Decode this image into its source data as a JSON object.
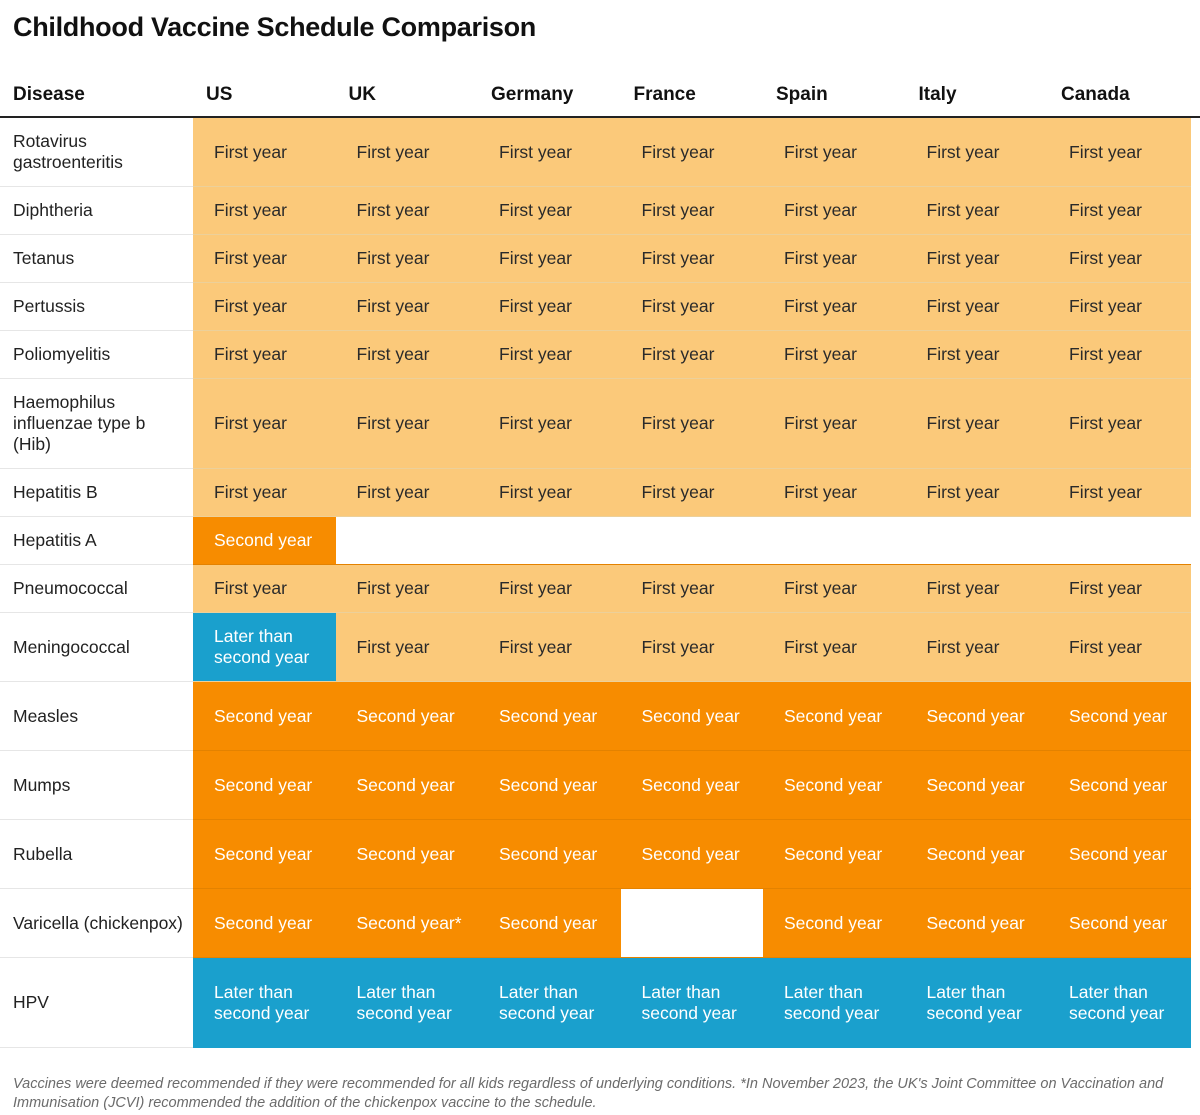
{
  "title": "Childhood Vaccine Schedule Comparison",
  "chart_data": {
    "type": "table",
    "title": "Childhood Vaccine Schedule Comparison",
    "columns": [
      "Disease",
      "US",
      "UK",
      "Germany",
      "France",
      "Spain",
      "Italy",
      "Canada"
    ],
    "rows": [
      {
        "disease": "Rotavirus gastroenteritis",
        "values": [
          "First year",
          "First year",
          "First year",
          "First year",
          "First year",
          "First year",
          "First year"
        ]
      },
      {
        "disease": "Diphtheria",
        "values": [
          "First year",
          "First year",
          "First year",
          "First year",
          "First year",
          "First year",
          "First year"
        ]
      },
      {
        "disease": "Tetanus",
        "values": [
          "First year",
          "First year",
          "First year",
          "First year",
          "First year",
          "First year",
          "First year"
        ]
      },
      {
        "disease": "Pertussis",
        "values": [
          "First year",
          "First year",
          "First year",
          "First year",
          "First year",
          "First year",
          "First year"
        ]
      },
      {
        "disease": "Poliomyelitis",
        "values": [
          "First year",
          "First year",
          "First year",
          "First year",
          "First year",
          "First year",
          "First year"
        ]
      },
      {
        "disease": "Haemophilus influenzae type b (Hib)",
        "values": [
          "First year",
          "First year",
          "First year",
          "First year",
          "First year",
          "First year",
          "First year"
        ]
      },
      {
        "disease": "Hepatitis B",
        "values": [
          "First year",
          "First year",
          "First year",
          "First year",
          "First year",
          "First year",
          "First year"
        ]
      },
      {
        "disease": "Hepatitis A",
        "values": [
          "Second year",
          "",
          "",
          "",
          "",
          "",
          ""
        ]
      },
      {
        "disease": "Pneumococcal",
        "values": [
          "First year",
          "First year",
          "First year",
          "First year",
          "First year",
          "First year",
          "First year"
        ]
      },
      {
        "disease": "Meningococcal",
        "values": [
          "Later than second year",
          "First year",
          "First year",
          "First year",
          "First year",
          "First year",
          "First year"
        ]
      },
      {
        "disease": "Measles",
        "values": [
          "Second year",
          "Second year",
          "Second year",
          "Second year",
          "Second year",
          "Second year",
          "Second year"
        ]
      },
      {
        "disease": "Mumps",
        "values": [
          "Second year",
          "Second year",
          "Second year",
          "Second year",
          "Second year",
          "Second year",
          "Second year"
        ]
      },
      {
        "disease": "Rubella",
        "values": [
          "Second year",
          "Second year",
          "Second year",
          "Second year",
          "Second year",
          "Second year",
          "Second year"
        ]
      },
      {
        "disease": "Varicella (chickenpox)",
        "values": [
          "Second year",
          "Second year*",
          "Second year",
          "",
          "Second year",
          "Second year",
          "Second year"
        ]
      },
      {
        "disease": "HPV",
        "values": [
          "Later than second year",
          "Later than second year",
          "Later than second year",
          "Later than second year",
          "Later than second year",
          "Later than second year",
          "Later than second year"
        ]
      }
    ],
    "category_colors": {
      "First year": "#fbc97a",
      "Second year": "#f78c00",
      "Later than second year": "#1aa0cd",
      "none": "#ffffff"
    }
  },
  "footnote": "Vaccines were deemed recommended if they were recommended for all kids regardless of underlying conditions. *In November 2023, the UK's Joint Committee on Vaccination and Immunisation (JCVI) recommended the addition of the chickenpox vaccine to the schedule."
}
